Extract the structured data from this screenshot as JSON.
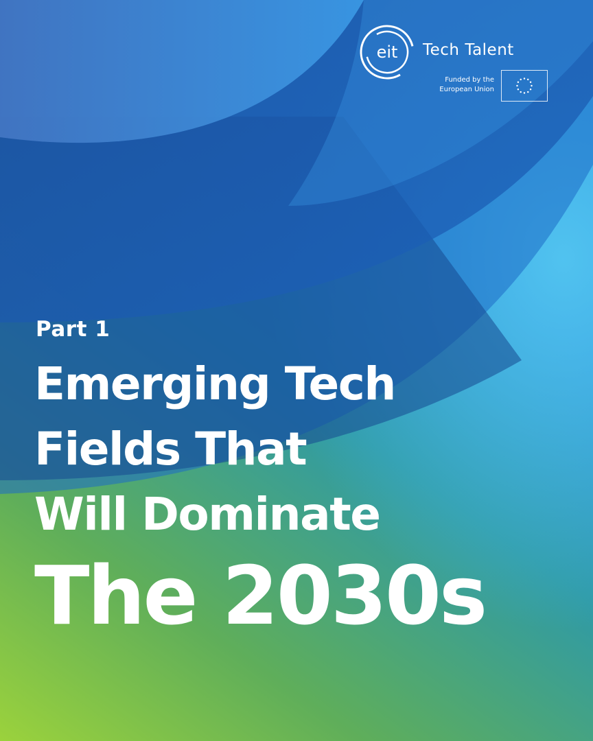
{
  "brand": {
    "name": "Tech Talent",
    "mark_text": "eit",
    "funded_by_line1": "Funded by the",
    "funded_by_line2": "European Union"
  },
  "cover": {
    "part_label": "Part 1",
    "title_lines": [
      "Emerging Tech",
      "Fields That",
      "Will Dominate"
    ],
    "highlight_line": "The 2030s"
  },
  "colors": {
    "text": "#ffffff",
    "blue_dark": "#1f55a8",
    "blue_mid": "#2a7fd4",
    "blue_light": "#3fa9ef",
    "green": "#9bd23c"
  },
  "icons": [
    "eit-logo-icon",
    "eu-flag-icon"
  ]
}
